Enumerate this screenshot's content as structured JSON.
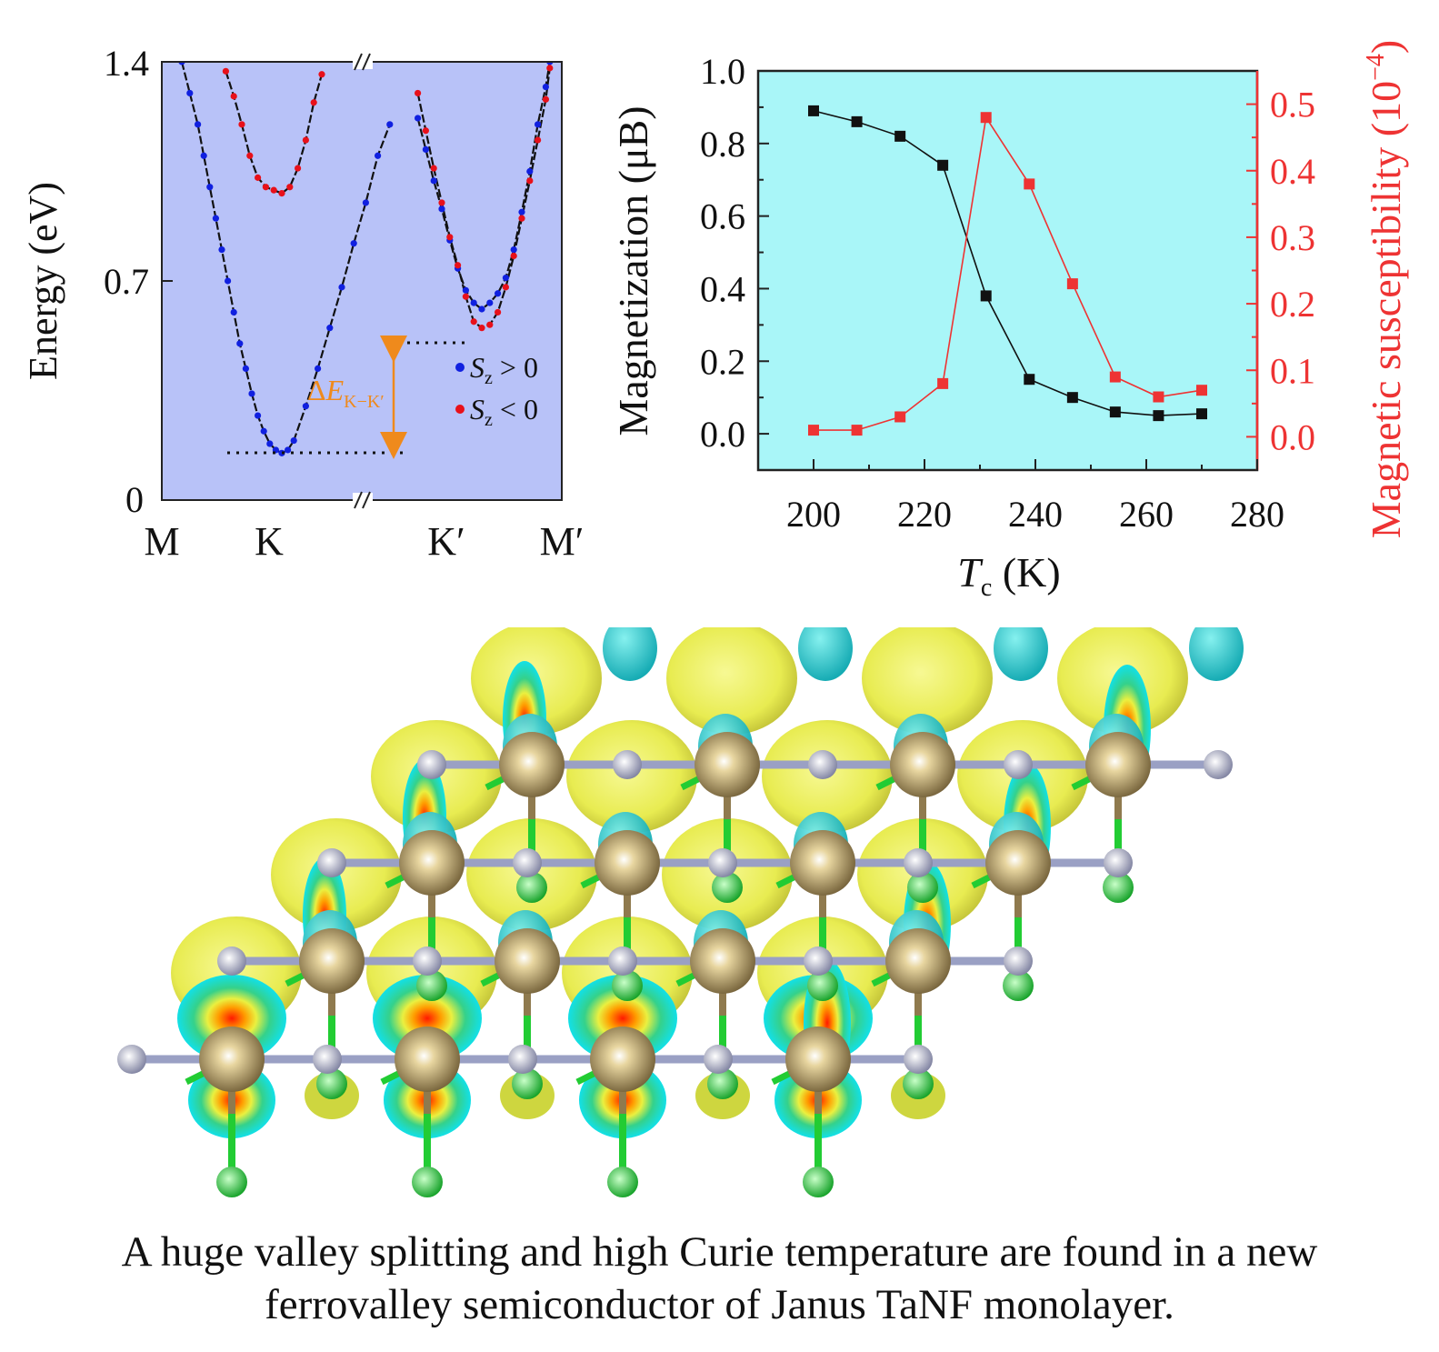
{
  "colors": {
    "band_bg": "#b8c2f8",
    "mag_bg": "#a9f6f8",
    "spin_up": "#1020e0",
    "spin_down": "#e8101a",
    "gap_arrow": "#ef8a1c",
    "magnetization": "#111111",
    "susceptibility": "#ee3333",
    "iso_yellow": "#e6f04a",
    "iso_cyan": "#19c8c8",
    "ta_atom": "#8f7a4e",
    "n_atom": "#a9abc6",
    "f_atom": "#22cc33"
  },
  "chart_data": [
    {
      "type": "scatter",
      "ylabel": "Energy (eV)",
      "ylim": [
        0,
        1.4
      ],
      "yticks": [
        "0",
        "0.7",
        "1.4"
      ],
      "kpoints": [
        "M",
        "K",
        "K′",
        "M′"
      ],
      "axis_break": true,
      "legend": [
        "S",
        "z",
        " > 0",
        "S",
        "z",
        " < 0"
      ],
      "annotation": {
        "prefix": "Δ",
        "E": "E",
        "sub": "K−K′"
      },
      "gap_levels": [
        0.15,
        0.5
      ],
      "series": [
        {
          "name": "S_z > 0",
          "color": "#1020e0",
          "points": [
            [
              0.05,
              1.4
            ],
            [
              0.07,
              1.3
            ],
            [
              0.09,
              1.2
            ],
            [
              0.105,
              1.1
            ],
            [
              0.12,
              1.0
            ],
            [
              0.135,
              0.9
            ],
            [
              0.15,
              0.8
            ],
            [
              0.165,
              0.7
            ],
            [
              0.18,
              0.6
            ],
            [
              0.195,
              0.5
            ],
            [
              0.21,
              0.42
            ],
            [
              0.225,
              0.34
            ],
            [
              0.24,
              0.27
            ],
            [
              0.255,
              0.22
            ],
            [
              0.27,
              0.18
            ],
            [
              0.285,
              0.16
            ],
            [
              0.3,
              0.15
            ],
            [
              0.315,
              0.16
            ],
            [
              0.33,
              0.19
            ],
            [
              0.36,
              0.3
            ],
            [
              0.39,
              0.42
            ],
            [
              0.42,
              0.55
            ],
            [
              0.45,
              0.68
            ],
            [
              0.48,
              0.82
            ],
            [
              0.51,
              0.95
            ],
            [
              0.54,
              1.1
            ],
            [
              0.57,
              1.2
            ],
            [
              0.64,
              1.22
            ],
            [
              0.66,
              1.12
            ],
            [
              0.68,
              1.02
            ],
            [
              0.7,
              0.93
            ],
            [
              0.72,
              0.83
            ],
            [
              0.74,
              0.74
            ],
            [
              0.76,
              0.67
            ],
            [
              0.78,
              0.63
            ],
            [
              0.8,
              0.61
            ],
            [
              0.82,
              0.63
            ],
            [
              0.84,
              0.66
            ],
            [
              0.86,
              0.71
            ],
            [
              0.88,
              0.8
            ],
            [
              0.9,
              0.92
            ],
            [
              0.92,
              1.05
            ],
            [
              0.94,
              1.2
            ],
            [
              0.96,
              1.32
            ],
            [
              0.97,
              1.4
            ]
          ]
        },
        {
          "name": "S_z < 0",
          "color": "#e8101a",
          "points": [
            [
              0.16,
              1.37
            ],
            [
              0.18,
              1.29
            ],
            [
              0.2,
              1.2
            ],
            [
              0.22,
              1.1
            ],
            [
              0.24,
              1.03
            ],
            [
              0.26,
              1.0
            ],
            [
              0.28,
              0.99
            ],
            [
              0.3,
              0.98
            ],
            [
              0.32,
              1.0
            ],
            [
              0.34,
              1.06
            ],
            [
              0.36,
              1.15
            ],
            [
              0.38,
              1.27
            ],
            [
              0.4,
              1.36
            ],
            [
              0.64,
              1.3
            ],
            [
              0.66,
              1.18
            ],
            [
              0.68,
              1.06
            ],
            [
              0.7,
              0.95
            ],
            [
              0.72,
              0.84
            ],
            [
              0.74,
              0.75
            ],
            [
              0.76,
              0.65
            ],
            [
              0.78,
              0.57
            ],
            [
              0.8,
              0.55
            ],
            [
              0.82,
              0.56
            ],
            [
              0.84,
              0.6
            ],
            [
              0.86,
              0.68
            ],
            [
              0.88,
              0.78
            ],
            [
              0.9,
              0.9
            ],
            [
              0.92,
              1.02
            ],
            [
              0.94,
              1.15
            ],
            [
              0.96,
              1.28
            ],
            [
              0.97,
              1.38
            ]
          ]
        }
      ]
    },
    {
      "type": "line",
      "xlabel": [
        "T",
        "c",
        " (K)"
      ],
      "ylabel": "Magnetization (μB)",
      "ylabel2": [
        "Magnetic susceptibility (10",
        "−4",
        ")"
      ],
      "xlim": [
        190,
        280
      ],
      "ylim": [
        -0.1,
        1.0
      ],
      "ylim2": [
        -0.05,
        0.55
      ],
      "xticks": [
        "200",
        "220",
        "240",
        "260",
        "280"
      ],
      "yticks": [
        "0.0",
        "0.2",
        "0.4",
        "0.6",
        "0.8",
        "1.0"
      ],
      "yticks2": [
        "0.0",
        "0.1",
        "0.2",
        "0.3",
        "0.4",
        "0.5"
      ],
      "series": [
        {
          "name": "Magnetization",
          "axis": "left",
          "x": [
            200,
            207.8,
            215.6,
            223.3,
            231.1,
            238.9,
            246.7,
            254.4,
            262.2,
            270
          ],
          "y": [
            0.89,
            0.86,
            0.82,
            0.74,
            0.38,
            0.15,
            0.1,
            0.06,
            0.05,
            0.055
          ]
        },
        {
          "name": "Magnetic susceptibility",
          "axis": "right",
          "x": [
            200,
            207.8,
            215.6,
            223.3,
            231.1,
            238.9,
            246.7,
            254.4,
            262.2,
            270
          ],
          "y": [
            0.01,
            0.01,
            0.03,
            0.08,
            0.48,
            0.38,
            0.23,
            0.09,
            0.06,
            0.07
          ]
        }
      ]
    }
  ],
  "caption": {
    "line1": "A huge valley splitting and high Curie temperature are found in a new",
    "line2": "ferrovalley semiconductor of Janus TaNF monolayer."
  }
}
